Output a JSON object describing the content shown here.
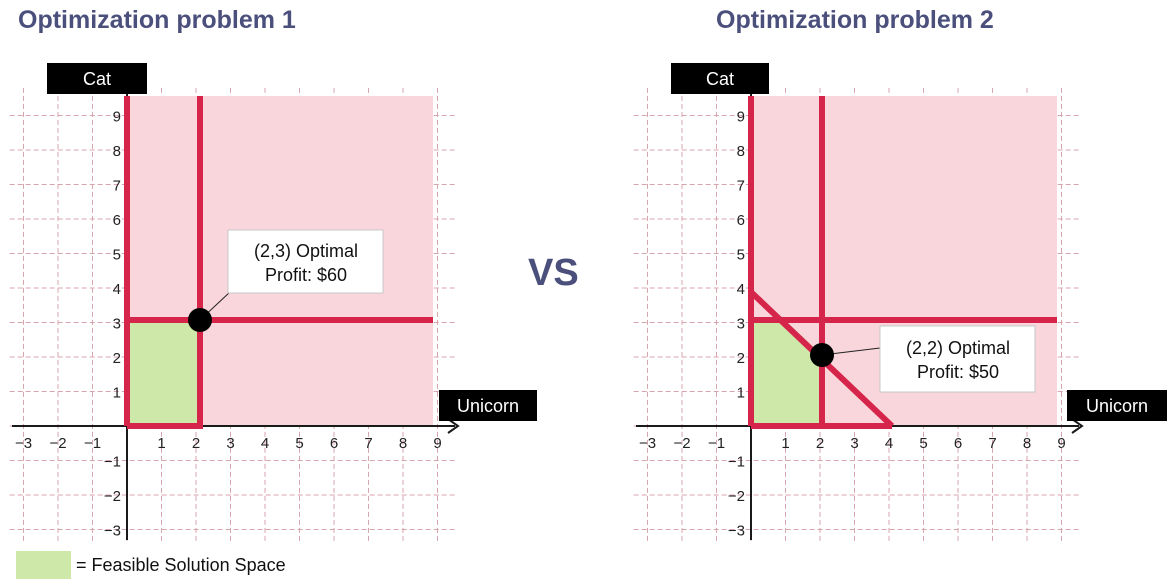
{
  "panels": [
    {
      "title": "Optimization problem 1",
      "y_axis_label": "Cat",
      "x_axis_label": "Unicorn",
      "x_ticks": [
        "−3",
        "−2",
        "−1",
        "1",
        "2",
        "3",
        "4",
        "5",
        "6",
        "7",
        "8",
        "9"
      ],
      "y_ticks": [
        "9",
        "8",
        "7",
        "6",
        "5",
        "4",
        "3",
        "2",
        "1",
        "−1",
        "−2",
        "−3"
      ],
      "callout_line1": "(2,3) Optimal",
      "callout_line2": "Profit: $60"
    },
    {
      "title": "Optimization problem 2",
      "y_axis_label": "Cat",
      "x_axis_label": "Unicorn",
      "x_ticks": [
        "−3",
        "−2",
        "−1",
        "1",
        "2",
        "3",
        "4",
        "5",
        "6",
        "7",
        "8",
        "9"
      ],
      "y_ticks": [
        "9",
        "8",
        "7",
        "6",
        "5",
        "4",
        "3",
        "2",
        "1",
        "−1",
        "−2",
        "−3"
      ],
      "callout_line1": "(2,2) Optimal",
      "callout_line2": "Profit: $50"
    }
  ],
  "separator": "VS",
  "legend": {
    "label": "= Feasible Solution Space"
  },
  "colors": {
    "title": "#4b4f7c",
    "constraint_line": "#d6254a",
    "infeasible_fill": "#f9d6dc",
    "feasible_fill": "#cde8a8",
    "grid": "#d8a4ad",
    "label_box": "#000000"
  },
  "chart_data": [
    {
      "type": "diagram",
      "constraints": [
        "x = 0",
        "y = 0",
        "x = 2",
        "y = 3"
      ],
      "feasible_region": [
        [
          0,
          0
        ],
        [
          2,
          0
        ],
        [
          2,
          3
        ],
        [
          0,
          3
        ]
      ],
      "optimal_point": [
        2,
        3
      ],
      "profit": 60,
      "xlim": [
        -3,
        9
      ],
      "ylim": [
        -3,
        9
      ]
    },
    {
      "type": "diagram",
      "constraints": [
        "x = 0",
        "y = 0",
        "x = 2",
        "y = 3",
        "x + y = 4"
      ],
      "feasible_region": [
        [
          0,
          0
        ],
        [
          2,
          0
        ],
        [
          2,
          2
        ],
        [
          1,
          3
        ],
        [
          0,
          3
        ]
      ],
      "optimal_point": [
        2,
        2
      ],
      "profit": 50,
      "xlim": [
        -3,
        9
      ],
      "ylim": [
        -3,
        9
      ]
    }
  ]
}
